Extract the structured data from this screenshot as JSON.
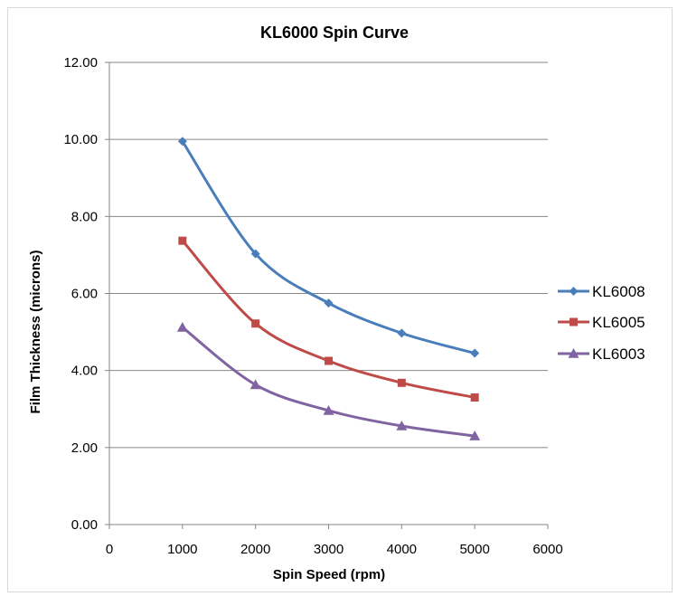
{
  "chart_data": {
    "type": "line",
    "title": "KL6000 Spin Curve",
    "xlabel": "Spin Speed (rpm)",
    "ylabel": "Film Thickness (microns)",
    "xlim": [
      0,
      6000
    ],
    "ylim": [
      0,
      12
    ],
    "x_ticks": [
      "0",
      "1000",
      "2000",
      "3000",
      "4000",
      "5000",
      "6000"
    ],
    "y_ticks": [
      "0.00",
      "2.00",
      "4.00",
      "6.00",
      "8.00",
      "10.00",
      "12.00"
    ],
    "grid": "horizontal",
    "legend_position": "right",
    "series": [
      {
        "name": "KL6008",
        "color": "#4a7ebb",
        "marker": "diamond",
        "x": [
          1000,
          2000,
          3000,
          4000,
          5000
        ],
        "y": [
          9.95,
          7.03,
          5.75,
          4.97,
          4.45
        ]
      },
      {
        "name": "KL6005",
        "color": "#be4b48",
        "marker": "square",
        "x": [
          1000,
          2000,
          3000,
          4000,
          5000
        ],
        "y": [
          7.37,
          5.22,
          4.25,
          3.68,
          3.3
        ]
      },
      {
        "name": "KL6003",
        "color": "#8064a2",
        "marker": "triangle",
        "x": [
          1000,
          2000,
          3000,
          4000,
          5000
        ],
        "y": [
          5.12,
          3.63,
          2.96,
          2.56,
          2.3
        ]
      }
    ]
  }
}
